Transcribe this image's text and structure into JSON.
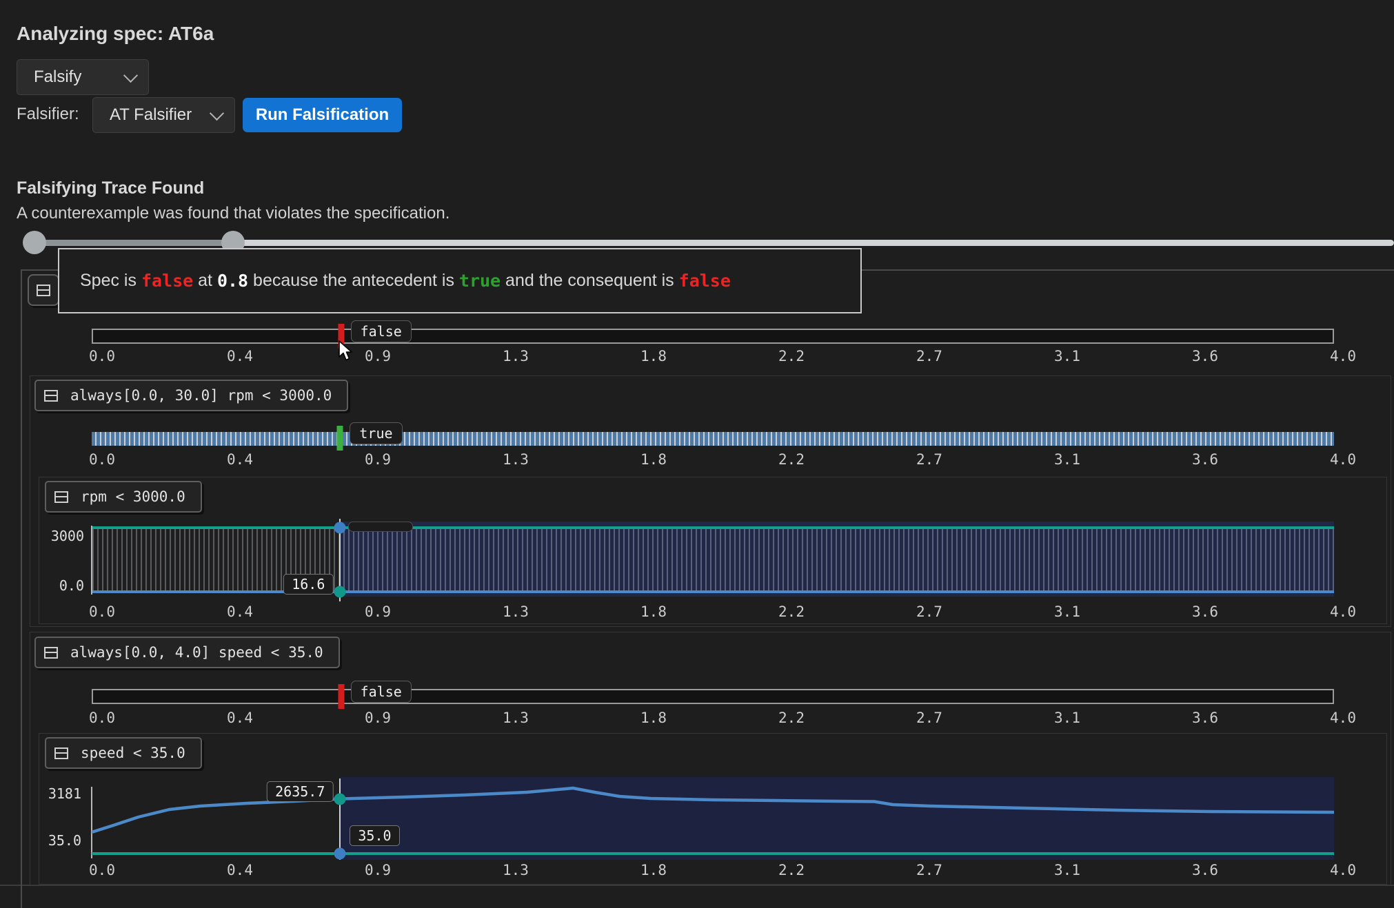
{
  "header": {
    "title": "Analyzing spec: AT6a"
  },
  "controls": {
    "mode_select": {
      "value": "Falsify"
    },
    "falsifier_label": "Falsifier:",
    "falsifier_select": {
      "value": "AT Falsifier"
    },
    "run_button_label": "Run Falsification"
  },
  "result": {
    "heading": "Falsifying Trace Found",
    "description": "A counterexample was found that violates the specification."
  },
  "slider": {
    "handle_positions_pct": [
      0.5,
      15.0
    ]
  },
  "cursor": {
    "time": 0.8
  },
  "axis": {
    "min": 0.0,
    "max": 4.0,
    "tick_labels": [
      "0.0",
      "0.4",
      "0.9",
      "1.3",
      "1.8",
      "2.2",
      "2.7",
      "3.1",
      "3.6",
      "4.0"
    ]
  },
  "explanation": {
    "parts": [
      {
        "text": "Spec is ",
        "style": "plain"
      },
      {
        "text": "false",
        "style": "red"
      },
      {
        "text": " at ",
        "style": "plain"
      },
      {
        "text": "0.8",
        "style": "bold-white"
      },
      {
        "text": " because the antecedent is ",
        "style": "plain"
      },
      {
        "text": "true",
        "style": "green"
      },
      {
        "text": " and the consequent is ",
        "style": "plain"
      },
      {
        "text": "false",
        "style": "red"
      }
    ]
  },
  "panels": {
    "spec": {
      "marker_label": "false"
    },
    "always_rpm": {
      "formula": "always[0.0, 30.0] rpm < 3000.0",
      "marker_label": "true"
    },
    "rpm": {
      "formula": "rpm < 3000.0",
      "y_top": "3000",
      "y_bottom": "0.0",
      "cursor_value": "16.6"
    },
    "always_speed": {
      "formula": "always[0.0, 4.0] speed < 35.0",
      "marker_label": "false"
    },
    "speed": {
      "formula": "speed < 35.0",
      "y_top": "3181",
      "y_bottom": "35.0",
      "cursor_value_signal": "2635.7",
      "cursor_value_threshold": "35.0"
    }
  },
  "chart_data": [
    {
      "id": "spec_timeline",
      "type": "timeline",
      "title": "spec verdict over time",
      "xlim": [
        0.0,
        4.0
      ],
      "true_intervals": [],
      "marker": {
        "t": 0.8,
        "verdict": "false"
      }
    },
    {
      "id": "always_rpm_timeline",
      "type": "timeline",
      "title": "always[0.0, 30.0] rpm < 3000.0",
      "xlim": [
        0.0,
        4.0
      ],
      "true_intervals": [
        [
          0.0,
          4.0
        ]
      ],
      "marker": {
        "t": 0.8,
        "verdict": "true"
      }
    },
    {
      "id": "rpm_signal",
      "type": "line",
      "title": "rpm < 3000.0",
      "xlim": [
        0.0,
        4.0
      ],
      "ylim": [
        0.0,
        3000.0
      ],
      "threshold": 3000.0,
      "cursor_value": 16.6,
      "series": [
        {
          "name": "rpm",
          "points": [
            [
              0.0,
              16.6
            ],
            [
              4.0,
              16.6
            ]
          ]
        }
      ]
    },
    {
      "id": "always_speed_timeline",
      "type": "timeline",
      "title": "always[0.0, 4.0] speed < 35.0",
      "xlim": [
        0.0,
        4.0
      ],
      "true_intervals": [],
      "marker": {
        "t": 0.8,
        "verdict": "false"
      }
    },
    {
      "id": "speed_signal",
      "type": "line",
      "title": "speed < 35.0",
      "xlim": [
        0.0,
        4.0
      ],
      "ylim": [
        35.0,
        3181.0
      ],
      "threshold": 35.0,
      "cursor_value": 2635.7,
      "series": [
        {
          "name": "speed",
          "points": [
            [
              0.0,
              944
            ],
            [
              0.07,
              1293
            ],
            [
              0.15,
              1713
            ],
            [
              0.25,
              2097
            ],
            [
              0.35,
              2272
            ],
            [
              0.5,
              2412
            ],
            [
              0.65,
              2517
            ],
            [
              0.8,
              2635.7
            ],
            [
              1.0,
              2727
            ],
            [
              1.2,
              2832
            ],
            [
              1.4,
              2971
            ],
            [
              1.55,
              3181
            ],
            [
              1.62,
              2971
            ],
            [
              1.7,
              2762
            ],
            [
              1.8,
              2657
            ],
            [
              2.0,
              2587
            ],
            [
              2.2,
              2552
            ],
            [
              2.4,
              2517
            ],
            [
              2.52,
              2500
            ],
            [
              2.58,
              2342
            ],
            [
              2.7,
              2272
            ],
            [
              2.9,
              2203
            ],
            [
              3.1,
              2133
            ],
            [
              3.3,
              2063
            ],
            [
              3.6,
              1993
            ],
            [
              3.8,
              1976
            ],
            [
              4.0,
              1958
            ]
          ]
        }
      ]
    }
  ],
  "colors": {
    "accent_blue": "#1273d2",
    "verdict_red": "#d41d1d",
    "verdict_green": "#3caf43",
    "threshold_teal": "#12a08d",
    "signal_blue": "#4c89c8",
    "selection_navy": "#1d2240",
    "hatch_blue": "#4e7aa5",
    "hatch_gap": "#c9d0d5",
    "slider_track": "#d2d5d6"
  }
}
